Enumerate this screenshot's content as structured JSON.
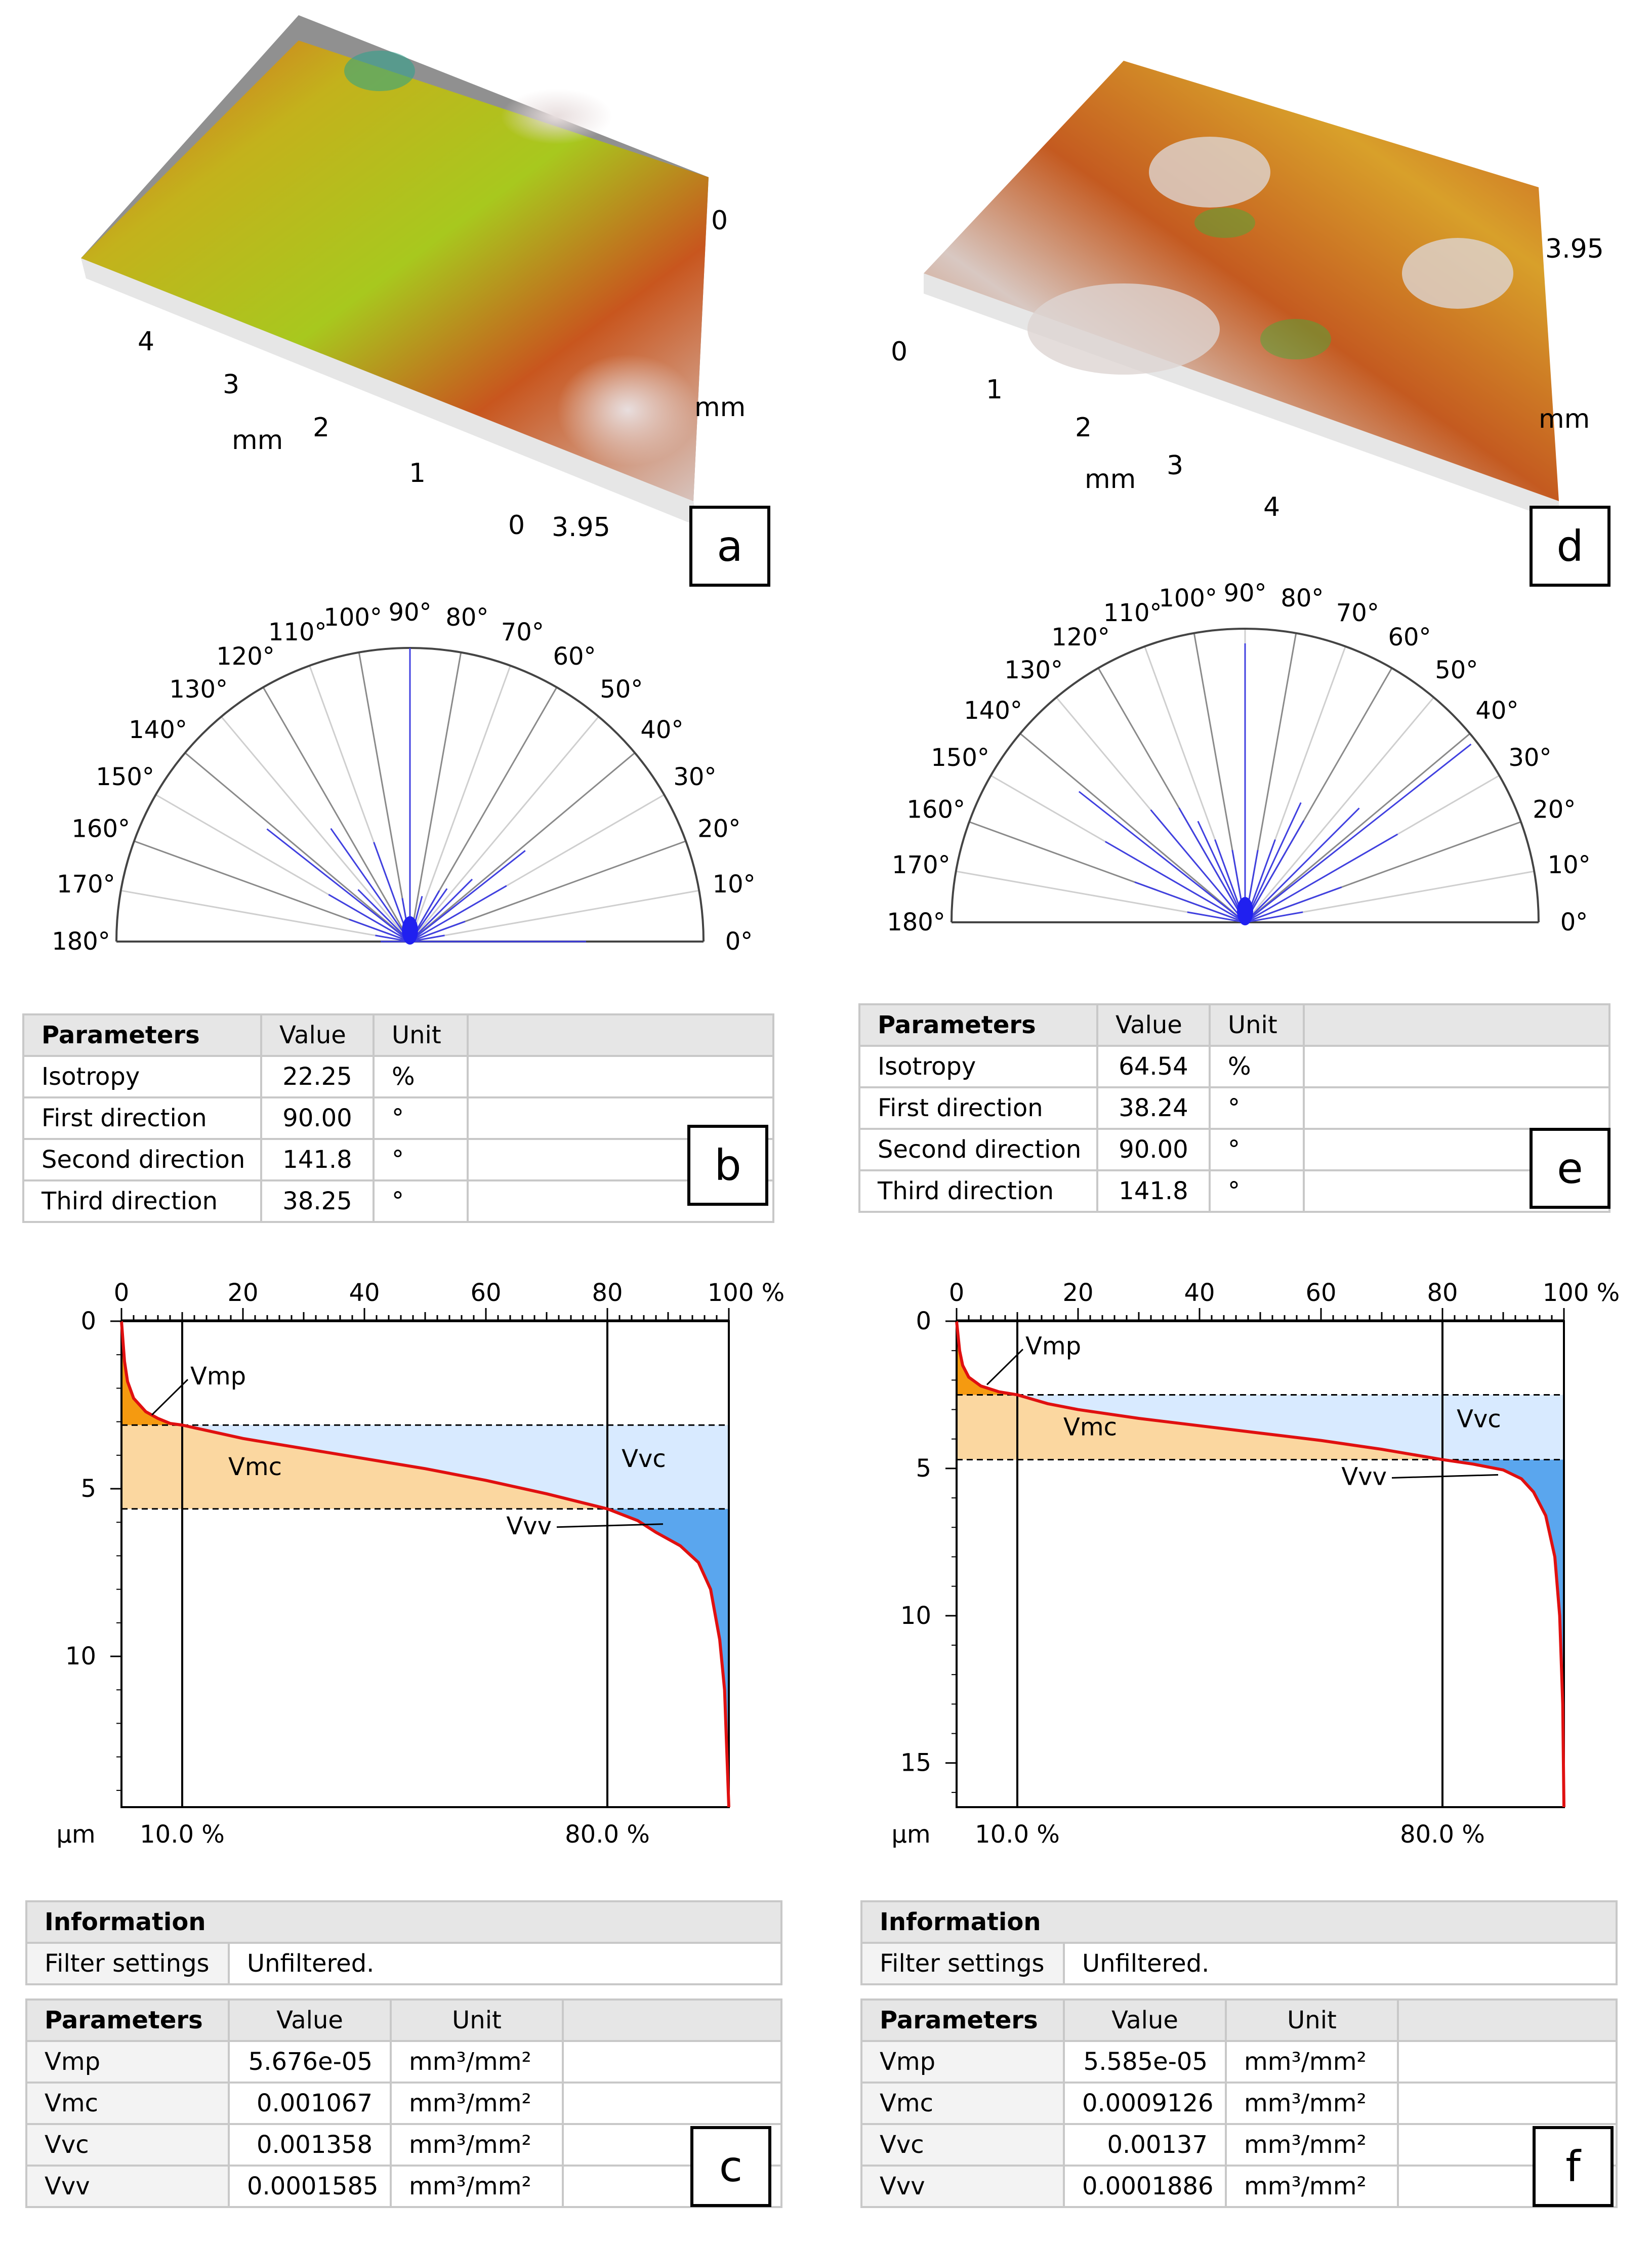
{
  "panels": {
    "a": {
      "label": "a",
      "axis_unit": "mm",
      "x_ticks": [
        "4",
        "3",
        "2",
        "1",
        "0"
      ],
      "right_ticks": [
        "0",
        "3.95"
      ]
    },
    "d": {
      "label": "d",
      "axis_unit": "mm",
      "x_ticks": [
        "0",
        "1",
        "2",
        "3",
        "4"
      ],
      "right_ticks": [
        "3.95"
      ]
    },
    "b": {
      "label": "b",
      "headers": [
        "Parameters",
        "Value",
        "Unit"
      ],
      "rows": [
        {
          "name": "Isotropy",
          "value": "22.25",
          "unit": "%"
        },
        {
          "name": "First direction",
          "value": "90.00",
          "unit": "°"
        },
        {
          "name": "Second direction",
          "value": "141.8",
          "unit": "°"
        },
        {
          "name": "Third direction",
          "value": "38.25",
          "unit": "°"
        }
      ]
    },
    "e": {
      "label": "e",
      "headers": [
        "Parameters",
        "Value",
        "Unit"
      ],
      "rows": [
        {
          "name": "Isotropy",
          "value": "64.54",
          "unit": "%"
        },
        {
          "name": "First direction",
          "value": "38.24",
          "unit": "°"
        },
        {
          "name": "Second direction",
          "value": "90.00",
          "unit": "°"
        },
        {
          "name": "Third direction",
          "value": "141.8",
          "unit": "°"
        }
      ]
    },
    "c": {
      "label": "c",
      "info_header": "Information",
      "filter_label": "Filter settings",
      "filter_value": "Unfiltered.",
      "headers": [
        "Parameters",
        "Value",
        "Unit"
      ],
      "rows": [
        {
          "name": "Vmp",
          "value": "5.676e-05",
          "unit": "mm³/mm²"
        },
        {
          "name": "Vmc",
          "value": "0.001067",
          "unit": "mm³/mm²"
        },
        {
          "name": "Vvc",
          "value": "0.001358",
          "unit": "mm³/mm²"
        },
        {
          "name": "Vvv",
          "value": "0.0001585",
          "unit": "mm³/mm²"
        }
      ]
    },
    "f": {
      "label": "f",
      "info_header": "Information",
      "filter_label": "Filter settings",
      "filter_value": "Unfiltered.",
      "headers": [
        "Parameters",
        "Value",
        "Unit"
      ],
      "rows": [
        {
          "name": "Vmp",
          "value": "5.585e-05",
          "unit": "mm³/mm²"
        },
        {
          "name": "Vmc",
          "value": "0.0009126",
          "unit": "mm³/mm²"
        },
        {
          "name": "Vvc",
          "value": "0.00137",
          "unit": "mm³/mm²"
        },
        {
          "name": "Vvv",
          "value": "0.0001886",
          "unit": "mm³/mm²"
        }
      ]
    }
  },
  "colors": {
    "curve": "#e01010",
    "peak_fill": "#f59a10",
    "core_fill": "#fbd7a0",
    "void_core_fill": "#d8eaff",
    "valley_fill": "#5aa6ee",
    "polar_line": "#4040e0"
  },
  "chart_data": [
    {
      "id": "polar-a",
      "type": "polar-rose",
      "angle_labels": [
        "0°",
        "10°",
        "20°",
        "30°",
        "40°",
        "50°",
        "60°",
        "70°",
        "80°",
        "90°",
        "100°",
        "110°",
        "120°",
        "130°",
        "140°",
        "150°",
        "160°",
        "170°",
        "180°"
      ],
      "spokes": [
        {
          "angle": 90,
          "r": 1.0
        },
        {
          "angle": 141.8,
          "r": 0.62
        },
        {
          "angle": 38.25,
          "r": 0.5
        },
        {
          "angle": 125,
          "r": 0.47
        },
        {
          "angle": 110,
          "r": 0.36
        },
        {
          "angle": 150,
          "r": 0.32
        },
        {
          "angle": 30,
          "r": 0.38
        },
        {
          "angle": 45,
          "r": 0.3
        },
        {
          "angle": 60,
          "r": 0.2
        },
        {
          "angle": 75,
          "r": 0.16
        },
        {
          "angle": 100,
          "r": 0.15
        },
        {
          "angle": 160,
          "r": 0.22
        },
        {
          "angle": 20,
          "r": 0.2
        },
        {
          "angle": 170,
          "r": 0.12
        },
        {
          "angle": 10,
          "r": 0.12
        },
        {
          "angle": 135,
          "r": 0.25
        },
        {
          "angle": 55,
          "r": 0.22
        },
        {
          "angle": 0,
          "r": 0.6
        },
        {
          "angle": 180,
          "r": 0.1
        }
      ]
    },
    {
      "id": "polar-d",
      "type": "polar-rose",
      "angle_labels": [
        "0°",
        "10°",
        "20°",
        "30°",
        "40°",
        "50°",
        "60°",
        "70°",
        "80°",
        "90°",
        "100°",
        "110°",
        "120°",
        "130°",
        "140°",
        "150°",
        "160°",
        "170°",
        "180°"
      ],
      "spokes": [
        {
          "angle": 38.24,
          "r": 0.98
        },
        {
          "angle": 90,
          "r": 0.95
        },
        {
          "angle": 141.8,
          "r": 0.72
        },
        {
          "angle": 130,
          "r": 0.5
        },
        {
          "angle": 120,
          "r": 0.45
        },
        {
          "angle": 150,
          "r": 0.55
        },
        {
          "angle": 160,
          "r": 0.4
        },
        {
          "angle": 30,
          "r": 0.6
        },
        {
          "angle": 45,
          "r": 0.55
        },
        {
          "angle": 60,
          "r": 0.4
        },
        {
          "angle": 70,
          "r": 0.3
        },
        {
          "angle": 80,
          "r": 0.25
        },
        {
          "angle": 100,
          "r": 0.25
        },
        {
          "angle": 110,
          "r": 0.3
        },
        {
          "angle": 20,
          "r": 0.35
        },
        {
          "angle": 10,
          "r": 0.2
        },
        {
          "angle": 170,
          "r": 0.2
        },
        {
          "angle": 65,
          "r": 0.45
        },
        {
          "angle": 115,
          "r": 0.38
        }
      ]
    },
    {
      "id": "abbott-c",
      "type": "area",
      "x_ticks": [
        "0",
        "20",
        "40",
        "60",
        "80",
        "100 %"
      ],
      "xlim": [
        0,
        100
      ],
      "y_ticks": [
        "0",
        "5",
        "10"
      ],
      "ylim": [
        0,
        14.5
      ],
      "y_unit": "µm",
      "marker_labels": [
        "10.0 %",
        "80.0 %"
      ],
      "markers": [
        10,
        80
      ],
      "h_peak": 3.1,
      "h_valley": 5.6,
      "region_labels": [
        "Vmp",
        "Vmc",
        "Vvc",
        "Vvv"
      ],
      "curve": [
        [
          0,
          0
        ],
        [
          0.5,
          1.2
        ],
        [
          1,
          1.8
        ],
        [
          2,
          2.3
        ],
        [
          4,
          2.7
        ],
        [
          6,
          2.9
        ],
        [
          8,
          3.05
        ],
        [
          10,
          3.1
        ],
        [
          15,
          3.3
        ],
        [
          20,
          3.5
        ],
        [
          30,
          3.8
        ],
        [
          40,
          4.1
        ],
        [
          50,
          4.4
        ],
        [
          60,
          4.75
        ],
        [
          70,
          5.15
        ],
        [
          80,
          5.6
        ],
        [
          85,
          5.95
        ],
        [
          88,
          6.3
        ],
        [
          92,
          6.7
        ],
        [
          95,
          7.2
        ],
        [
          97,
          8.0
        ],
        [
          98.5,
          9.5
        ],
        [
          99.3,
          11
        ],
        [
          100,
          14.5
        ]
      ]
    },
    {
      "id": "abbott-f",
      "type": "area",
      "x_ticks": [
        "0",
        "20",
        "40",
        "60",
        "80",
        "100 %"
      ],
      "xlim": [
        0,
        100
      ],
      "y_ticks": [
        "0",
        "5",
        "10",
        "15"
      ],
      "ylim": [
        0,
        16.5
      ],
      "y_unit": "µm",
      "marker_labels": [
        "10.0 %",
        "80.0 %"
      ],
      "markers": [
        10,
        80
      ],
      "h_peak": 2.5,
      "h_valley": 4.7,
      "region_labels": [
        "Vmp",
        "Vmc",
        "Vvc",
        "Vvv"
      ],
      "curve": [
        [
          0,
          0
        ],
        [
          0.5,
          1.0
        ],
        [
          1,
          1.5
        ],
        [
          2,
          1.9
        ],
        [
          4,
          2.2
        ],
        [
          7,
          2.4
        ],
        [
          10,
          2.5
        ],
        [
          15,
          2.8
        ],
        [
          20,
          3.0
        ],
        [
          30,
          3.3
        ],
        [
          40,
          3.55
        ],
        [
          50,
          3.8
        ],
        [
          60,
          4.05
        ],
        [
          70,
          4.35
        ],
        [
          80,
          4.7
        ],
        [
          85,
          4.85
        ],
        [
          90,
          5.05
        ],
        [
          93,
          5.35
        ],
        [
          95,
          5.8
        ],
        [
          97,
          6.6
        ],
        [
          98.5,
          8.0
        ],
        [
          99.3,
          10
        ],
        [
          99.8,
          13
        ],
        [
          100,
          16.5
        ]
      ]
    }
  ]
}
